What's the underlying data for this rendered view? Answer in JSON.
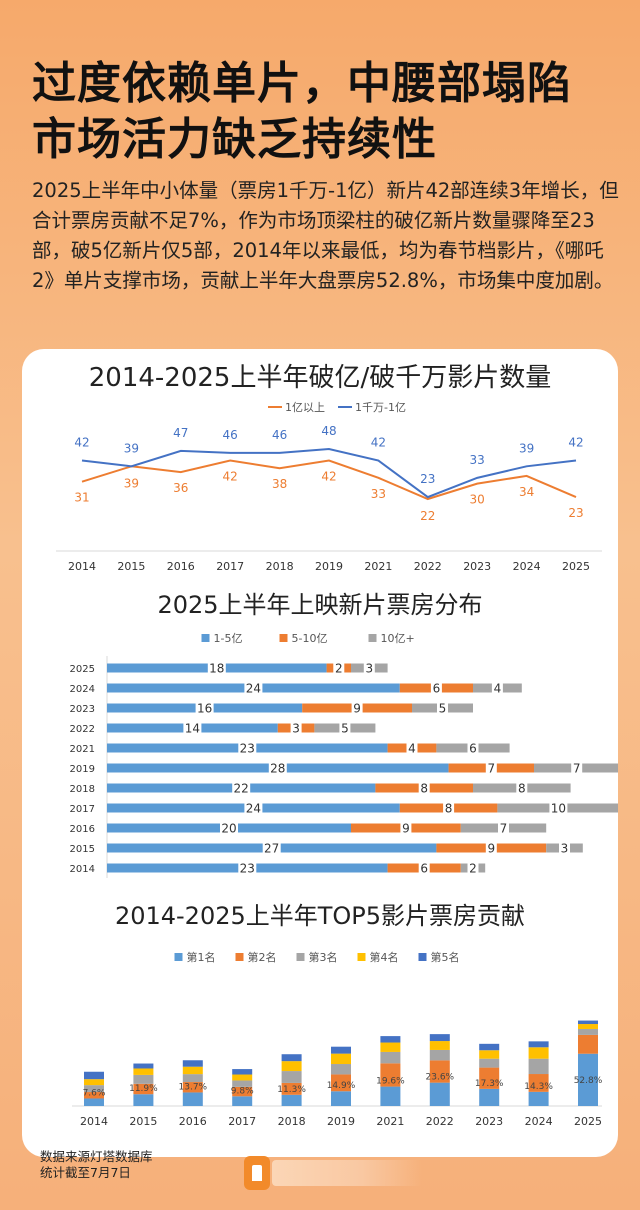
{
  "header": {
    "title_line1": "过度依赖单片，中腰部塌陷",
    "title_line2": "市场活力缺乏持续性",
    "intro": "2025上半年中小体量（票房1千万-1亿）新片42部连续3年增长，但合计票房贡献不足7%，作为市场顶梁柱的破亿新片数量骤降至23部，破5亿新片仅5部，2014年以来最低，均为春节档影片，《哪吒2》单片支撑市场，贡献上半年大盘票房52.8%，市场集中度加剧。"
  },
  "footer": {
    "line1": "数据来源灯塔数据库",
    "line2": "统计截至7月7日"
  },
  "chart_data": [
    {
      "type": "line",
      "title": "2014-2025上半年破亿/破千万影片数量",
      "categories": [
        "2014",
        "2015",
        "2016",
        "2017",
        "2018",
        "2019",
        "2021",
        "2022",
        "2023",
        "2024",
        "2025"
      ],
      "series": [
        {
          "name": "1亿以上",
          "color": "#ed7d31",
          "values": [
            31,
            39,
            36,
            42,
            38,
            42,
            33,
            22,
            30,
            34,
            23
          ]
        },
        {
          "name": "1千万-1亿",
          "color": "#4472c4",
          "values": [
            42,
            39,
            47,
            46,
            46,
            48,
            42,
            23,
            33,
            39,
            42
          ]
        }
      ],
      "legend": "top"
    },
    {
      "type": "bar",
      "orientation": "horizontal",
      "stacked": true,
      "title": "2025上半年上映新片票房分布",
      "categories": [
        "2025",
        "2024",
        "2023",
        "2022",
        "2021",
        "2019",
        "2018",
        "2017",
        "2016",
        "2015",
        "2014"
      ],
      "series": [
        {
          "name": "1-5亿",
          "color": "#5b9bd5",
          "values": [
            18,
            24,
            16,
            14,
            23,
            28,
            22,
            24,
            20,
            27,
            23
          ]
        },
        {
          "name": "5-10亿",
          "color": "#ed7d31",
          "values": [
            2,
            6,
            9,
            3,
            4,
            7,
            8,
            8,
            9,
            9,
            6
          ]
        },
        {
          "name": "10亿+",
          "color": "#a5a5a5",
          "values": [
            3,
            4,
            5,
            5,
            6,
            7,
            8,
            10,
            7,
            3,
            2
          ]
        }
      ],
      "legend": "top"
    },
    {
      "type": "bar",
      "stacked": true,
      "title": "2014-2025上半年TOP5影片票房贡献",
      "categories": [
        "2014",
        "2015",
        "2016",
        "2017",
        "2018",
        "2019",
        "2021",
        "2022",
        "2023",
        "2024",
        "2025"
      ],
      "data_labels": [
        "7.6%",
        "11.9%",
        "13.7%",
        "9.8%",
        "11.3%",
        "14.9%",
        "19.6%",
        "23.6%",
        "17.3%",
        "14.3%",
        "52.8%"
      ],
      "series": [
        {
          "name": "第1名",
          "color": "#5b9bd5",
          "values": [
            7.6,
            11.9,
            13.7,
            9.8,
            11.3,
            14.9,
            19.6,
            23.6,
            17.3,
            14.3,
            52.8
          ]
        },
        {
          "name": "第2名",
          "color": "#ed7d31",
          "values": [
            6.5,
            10.5,
            10.5,
            9.5,
            12.0,
            17.0,
            23.5,
            22.5,
            21.5,
            18.0,
            19.0
          ]
        },
        {
          "name": "第3名",
          "color": "#a5a5a5",
          "values": [
            7.0,
            9.0,
            8.0,
            6.5,
            12.0,
            10.5,
            11.5,
            10.5,
            9.0,
            15.5,
            6.0
          ]
        },
        {
          "name": "第4名",
          "color": "#ffc000",
          "values": [
            6.0,
            6.5,
            7.5,
            6.0,
            10.0,
            10.5,
            9.5,
            9.0,
            8.5,
            11.5,
            5.0
          ]
        },
        {
          "name": "第5名",
          "color": "#4472c4",
          "values": [
            7.5,
            5.0,
            6.5,
            5.5,
            7.0,
            7.0,
            6.5,
            7.0,
            6.5,
            6.0,
            3.5
          ]
        }
      ],
      "ylim": [
        0,
        100
      ],
      "legend": "top"
    }
  ]
}
